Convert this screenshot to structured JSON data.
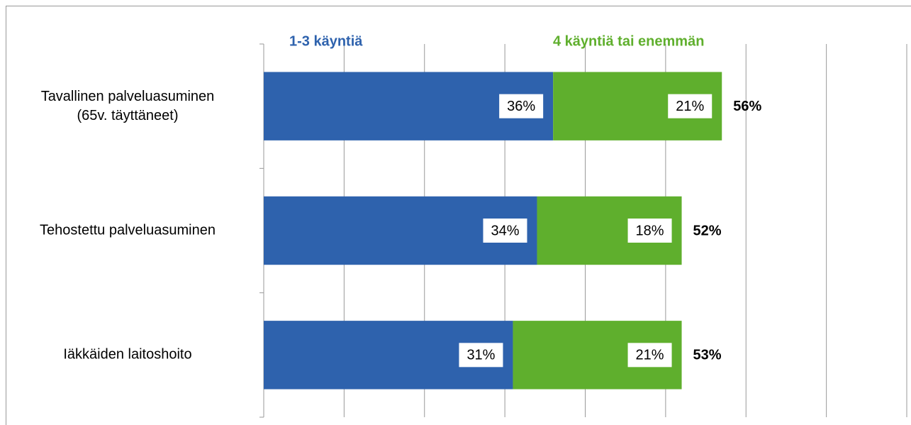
{
  "chart_data": {
    "type": "stacked-bar-horizontal",
    "categories": [
      "Tavallinen palveluasuminen\n(65v. täyttäneet)",
      "Tehostettu palveluasuminen",
      "Iäkkäiden laitoshoito"
    ],
    "series": [
      {
        "name": "1-3 käyntiä",
        "color": "#2e62ad",
        "values": [
          36,
          34,
          31
        ],
        "value_labels": [
          "36%",
          "34%",
          "31%"
        ]
      },
      {
        "name": "4 käyntiä tai enemmän",
        "color": "#5faf2d",
        "values": [
          21,
          18,
          21
        ],
        "value_labels": [
          "21%",
          "18%",
          "21%"
        ]
      }
    ],
    "totals": [
      56,
      52,
      53
    ],
    "total_labels": [
      "56%",
      "52%",
      "53%"
    ],
    "xlim": [
      0,
      80
    ],
    "xticks": [
      0,
      10,
      20,
      30,
      40,
      50,
      60,
      70,
      80
    ],
    "grid": true,
    "legend": "top"
  }
}
